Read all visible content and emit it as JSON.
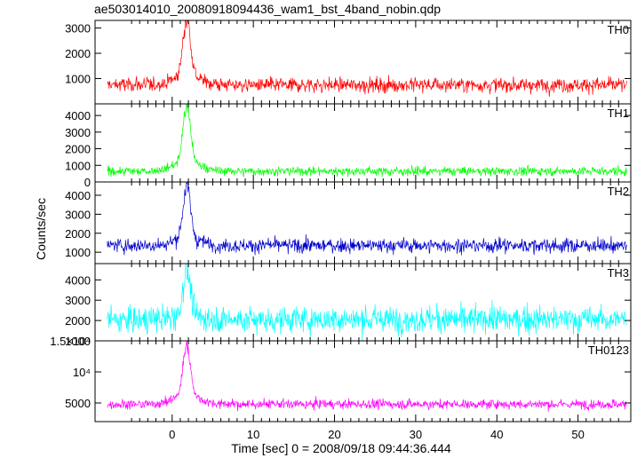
{
  "title": "ae503014010_20080918094436_wam1_bst_4band_nobin.qdp",
  "chart_data": {
    "type": "line",
    "title": "ae503014010_20080918094436_wam1_bst_4band_nobin.qdp",
    "xlabel": "Time [sec] 0 = 2008/09/18 09:44:36.444",
    "ylabel": "Counts/sec",
    "xlim": [
      -9.5,
      56.5
    ],
    "xticks": [
      0,
      10,
      20,
      30,
      40,
      50
    ],
    "shared_x": true,
    "grid": false,
    "panels": [
      {
        "name": "TH0",
        "color": "#ff0000",
        "ylim": [
          0,
          3300
        ],
        "yticks": [
          1000,
          2000,
          3000
        ],
        "ytick_labels": [
          "1000",
          "2000",
          "3000"
        ],
        "baseline": 750,
        "noise": 250,
        "peak": 3300,
        "peak_time": 1.8,
        "precursor": 400
      },
      {
        "name": "TH1",
        "color": "#00ff00",
        "ylim": [
          0,
          4700
        ],
        "yticks": [
          0,
          1000,
          2000,
          3000,
          4000
        ],
        "ytick_labels": [
          "0",
          "1000",
          "2000",
          "3000",
          "4000"
        ],
        "baseline": 650,
        "noise": 230,
        "peak": 4600,
        "peak_time": 1.8,
        "precursor": 600
      },
      {
        "name": "TH2",
        "color": "#0000cc",
        "ylim": [
          400,
          4700
        ],
        "yticks": [
          1000,
          2000,
          3000,
          4000
        ],
        "ytick_labels": [
          "1000",
          "2000",
          "3000",
          "4000"
        ],
        "baseline": 1350,
        "noise": 320,
        "peak": 4500,
        "peak_time": 1.8,
        "precursor": 400
      },
      {
        "name": "TH3",
        "color": "#00ffff",
        "ylim": [
          1000,
          4800
        ],
        "yticks": [
          1000,
          2000,
          3000,
          4000
        ],
        "ytick_labels": [
          "1000",
          "2000",
          "3000",
          "4000"
        ],
        "baseline": 2050,
        "noise": 550,
        "peak": 4700,
        "peak_time": 1.8,
        "precursor": 200
      },
      {
        "name": "TH0123",
        "color": "#ff00ff",
        "ylim": [
          2000,
          15000
        ],
        "yticks": [
          5000,
          10000,
          15000
        ],
        "ytick_labels": [
          "5000",
          "10⁴",
          "1.5×10⁴"
        ],
        "baseline": 4800,
        "noise": 650,
        "peak": 14000,
        "peak_time": 1.8,
        "precursor": 1500
      }
    ]
  }
}
